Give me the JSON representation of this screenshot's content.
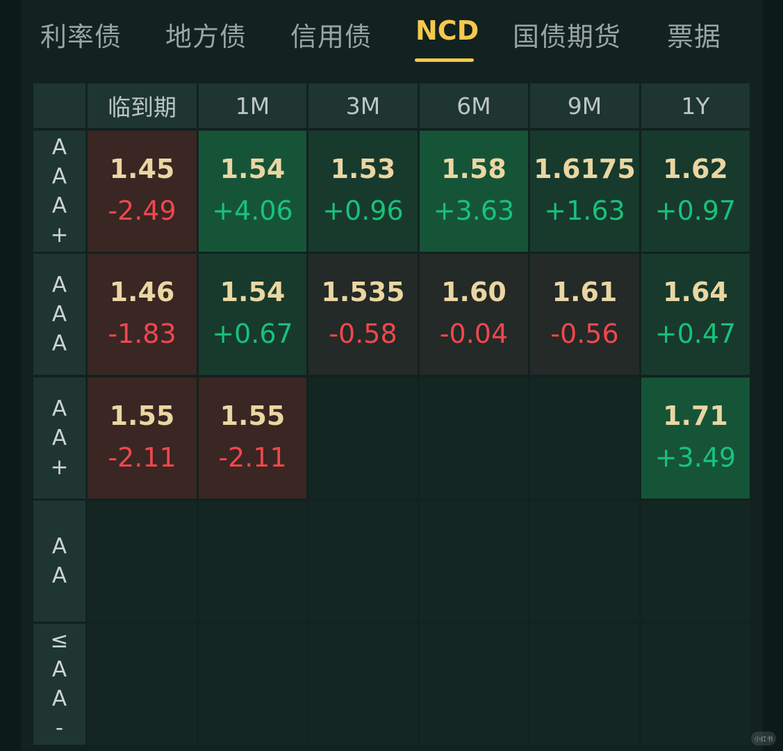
{
  "tabs": [
    {
      "label": "利率债",
      "active": false
    },
    {
      "label": "地方债",
      "active": false
    },
    {
      "label": "信用债",
      "active": false
    },
    {
      "label": "NCD",
      "active": true
    },
    {
      "label": "国债期货",
      "active": false
    },
    {
      "label": "票据",
      "active": false
    }
  ],
  "colors": {
    "accent": "#f6c84c",
    "up": "#19c27a",
    "down": "#f0474e",
    "rate": "#ead6a2"
  },
  "table": {
    "columns": [
      "临到期",
      "1M",
      "3M",
      "6M",
      "9M",
      "1Y"
    ],
    "rows": [
      {
        "label": [
          "A",
          "A",
          "A",
          "+"
        ],
        "cells": [
          {
            "rate": "1.45",
            "change": "-2.49"
          },
          {
            "rate": "1.54",
            "change": "+4.06"
          },
          {
            "rate": "1.53",
            "change": "+0.96"
          },
          {
            "rate": "1.58",
            "change": "+3.63"
          },
          {
            "rate": "1.6175",
            "change": "+1.63"
          },
          {
            "rate": "1.62",
            "change": "+0.97"
          }
        ]
      },
      {
        "label": [
          "A",
          "A",
          "A"
        ],
        "cells": [
          {
            "rate": "1.46",
            "change": "-1.83"
          },
          {
            "rate": "1.54",
            "change": "+0.67"
          },
          {
            "rate": "1.535",
            "change": "-0.58"
          },
          {
            "rate": "1.60",
            "change": "-0.04"
          },
          {
            "rate": "1.61",
            "change": "-0.56"
          },
          {
            "rate": "1.64",
            "change": "+0.47"
          }
        ]
      },
      {
        "label": [
          "A",
          "A",
          "+"
        ],
        "cells": [
          {
            "rate": "1.55",
            "change": "-2.11"
          },
          {
            "rate": "1.55",
            "change": "-2.11"
          },
          null,
          null,
          null,
          {
            "rate": "1.71",
            "change": "+3.49"
          }
        ]
      },
      {
        "label": [
          "A",
          "A"
        ],
        "cells": [
          null,
          null,
          null,
          null,
          null,
          null
        ]
      },
      {
        "label": [
          "≤",
          "A",
          "A",
          "-"
        ],
        "cells": [
          null,
          null,
          null,
          null,
          null,
          null
        ]
      }
    ]
  },
  "watermark": "小红书"
}
